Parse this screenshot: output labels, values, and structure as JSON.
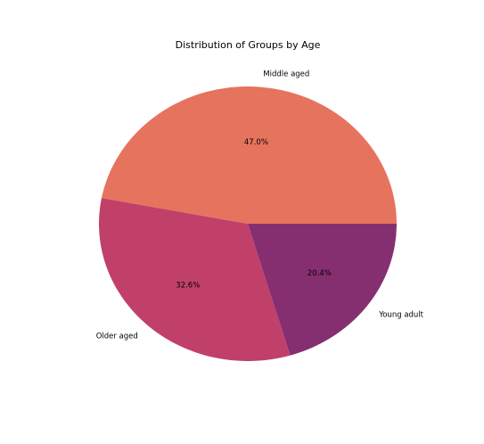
{
  "chart_data": {
    "type": "pie",
    "title": "Distribution of Groups by Age",
    "categories": [
      "Middle aged",
      "Older aged",
      "Young adult"
    ],
    "values": [
      47.0,
      32.6,
      20.4
    ],
    "percent_labels": [
      "47.0%",
      "32.6%",
      "20.4%"
    ],
    "colors": [
      "#e6735e",
      "#c0406a",
      "#862f70"
    ],
    "start_angle_deg": 0,
    "direction": "counterclockwise"
  }
}
